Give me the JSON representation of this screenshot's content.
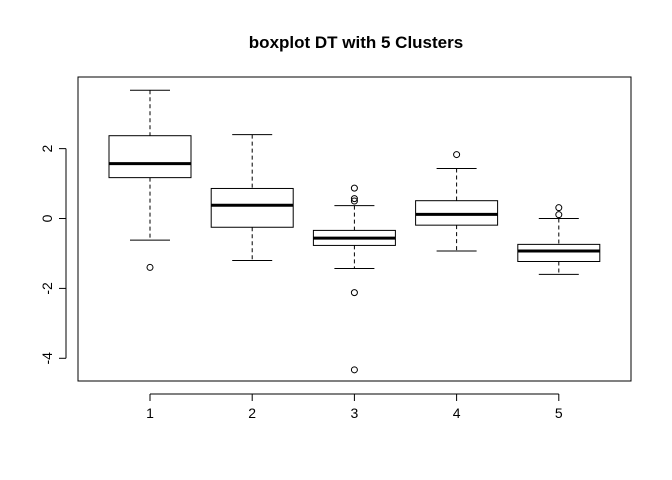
{
  "chart_data": {
    "type": "boxplot",
    "title": "boxplot DT with 5 Clusters",
    "xlabel": "",
    "ylabel": "",
    "categories": [
      "1",
      "2",
      "3",
      "4",
      "5"
    ],
    "yticks": [
      -4,
      -2,
      0,
      2
    ],
    "ylim": [
      -4.65,
      4.05
    ],
    "boxes": [
      {
        "label": "1",
        "whisker_low": -0.62,
        "q1": 1.17,
        "median": 1.57,
        "q3": 2.37,
        "whisker_high": 3.67,
        "outliers": [
          -1.4
        ]
      },
      {
        "label": "2",
        "whisker_low": -1.2,
        "q1": -0.25,
        "median": 0.38,
        "q3": 0.86,
        "whisker_high": 2.4,
        "outliers": []
      },
      {
        "label": "3",
        "whisker_low": -1.43,
        "q1": -0.77,
        "median": -0.56,
        "q3": -0.34,
        "whisker_high": 0.37,
        "outliers": [
          0.87,
          0.57,
          0.5,
          -2.12,
          -4.33
        ]
      },
      {
        "label": "4",
        "whisker_low": -0.93,
        "q1": -0.19,
        "median": 0.12,
        "q3": 0.51,
        "whisker_high": 1.43,
        "outliers": [
          1.83
        ]
      },
      {
        "label": "5",
        "whisker_low": -1.6,
        "q1": -1.23,
        "median": -0.93,
        "q3": -0.74,
        "whisker_high": 0.0,
        "outliers": [
          0.31,
          0.11
        ]
      }
    ]
  }
}
